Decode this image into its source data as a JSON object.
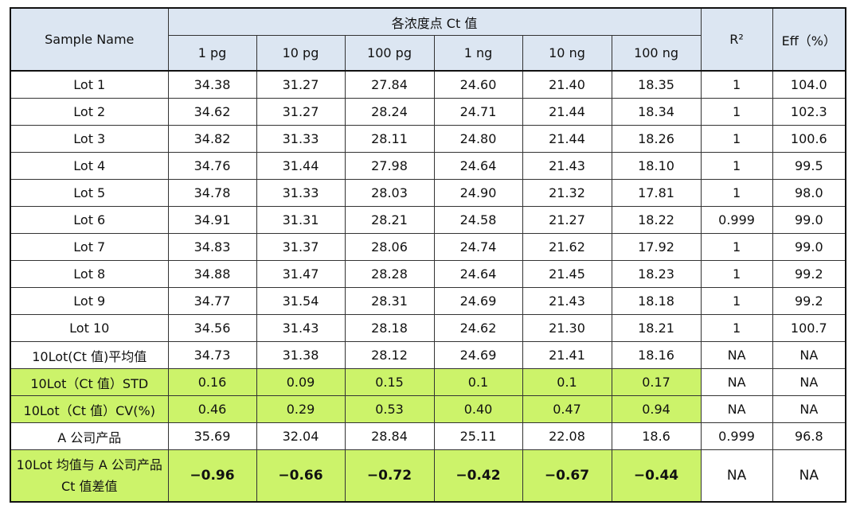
{
  "header": {
    "sample_name": "Sample Name",
    "group_title": "各浓度点 Ct 值",
    "columns": [
      "1  pg",
      "10  pg",
      "100  pg",
      "1  ng",
      "10  ng",
      "100  ng"
    ],
    "r2": "R²",
    "eff": "Eff（%）"
  },
  "table": {
    "rows": [
      [
        "Lot  1",
        "34.38",
        "31.27",
        "27.84",
        "24.60",
        "21.40",
        "18.35",
        "1",
        "104.0"
      ],
      [
        "Lot  2",
        "34.62",
        "31.27",
        "28.24",
        "24.71",
        "21.44",
        "18.34",
        "1",
        "102.3"
      ],
      [
        "Lot  3",
        "34.82",
        "31.33",
        "28.11",
        "24.80",
        "21.44",
        "18.26",
        "1",
        "100.6"
      ],
      [
        "Lot  4",
        "34.76",
        "31.44",
        "27.98",
        "24.64",
        "21.43",
        "18.10",
        "1",
        "99.5"
      ],
      [
        "Lot  5",
        "34.78",
        "31.33",
        "28.03",
        "24.90",
        "21.32",
        "17.81",
        "1",
        "98.0"
      ],
      [
        "Lot  6",
        "34.91",
        "31.31",
        "28.21",
        "24.58",
        "21.27",
        "18.22",
        "0.999",
        "99.0"
      ],
      [
        "Lot  7",
        "34.83",
        "31.37",
        "28.06",
        "24.74",
        "21.62",
        "17.92",
        "1",
        "99.0"
      ],
      [
        "Lot  8",
        "34.88",
        "31.47",
        "28.28",
        "24.64",
        "21.45",
        "18.23",
        "1",
        "99.2"
      ],
      [
        "Lot  9",
        "34.77",
        "31.54",
        "28.31",
        "24.69",
        "21.43",
        "18.18",
        "1",
        "99.2"
      ],
      [
        "Lot  10",
        "34.56",
        "31.43",
        "28.18",
        "24.62",
        "21.30",
        "18.21",
        "1",
        "100.7"
      ],
      [
        "10Lot(Ct 值)平均值",
        "34.73",
        "31.38",
        "28.12",
        "24.69",
        "21.41",
        "18.16",
        "NA",
        "NA"
      ],
      [
        "10Lot（Ct 值）STD",
        "0.16",
        "0.09",
        "0.15",
        "0.1",
        "0.1",
        "0.17",
        "NA",
        "NA"
      ],
      [
        "10Lot（Ct 值）CV(%)",
        "0.46",
        "0.29",
        "0.53",
        "0.40",
        "0.47",
        "0.94",
        "NA",
        "NA"
      ],
      [
        "A 公司产品",
        "35.69",
        "32.04",
        "28.84",
        "25.11",
        "22.08",
        "18.6",
        "0.999",
        "96.8"
      ],
      [
        "10Lot 均值与 A 公司产品 Ct 值差值",
        "−0.96",
        "−0.66",
        "−0.72",
        "−0.42",
        "−0.67",
        "−0.44",
        "NA",
        "NA"
      ]
    ]
  }
}
